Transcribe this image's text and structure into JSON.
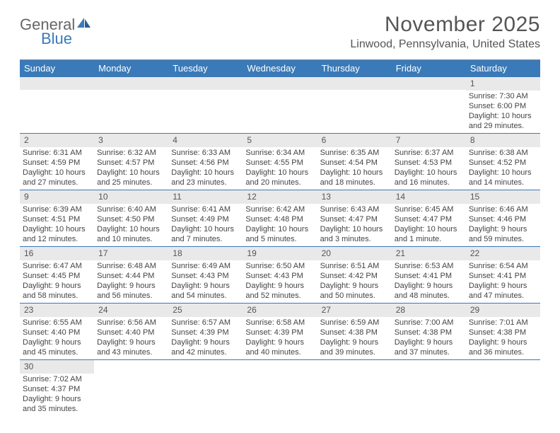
{
  "brand": {
    "word1": "General",
    "word2": "Blue",
    "word1_color": "#666666",
    "word2_color": "#3a7ab8"
  },
  "title": "November 2025",
  "location": "Linwood, Pennsylvania, United States",
  "colors": {
    "header_bg": "#3a7ab8",
    "header_text": "#ffffff",
    "daynum_bg": "#e9e9e9",
    "text": "#444444",
    "row_border": "#3a7ab8"
  },
  "day_headers": [
    "Sunday",
    "Monday",
    "Tuesday",
    "Wednesday",
    "Thursday",
    "Friday",
    "Saturday"
  ],
  "weeks": [
    [
      null,
      null,
      null,
      null,
      null,
      null,
      {
        "n": "1",
        "sunrise": "Sunrise: 7:30 AM",
        "sunset": "Sunset: 6:00 PM",
        "daylight": "Daylight: 10 hours and 29 minutes."
      }
    ],
    [
      {
        "n": "2",
        "sunrise": "Sunrise: 6:31 AM",
        "sunset": "Sunset: 4:59 PM",
        "daylight": "Daylight: 10 hours and 27 minutes."
      },
      {
        "n": "3",
        "sunrise": "Sunrise: 6:32 AM",
        "sunset": "Sunset: 4:57 PM",
        "daylight": "Daylight: 10 hours and 25 minutes."
      },
      {
        "n": "4",
        "sunrise": "Sunrise: 6:33 AM",
        "sunset": "Sunset: 4:56 PM",
        "daylight": "Daylight: 10 hours and 23 minutes."
      },
      {
        "n": "5",
        "sunrise": "Sunrise: 6:34 AM",
        "sunset": "Sunset: 4:55 PM",
        "daylight": "Daylight: 10 hours and 20 minutes."
      },
      {
        "n": "6",
        "sunrise": "Sunrise: 6:35 AM",
        "sunset": "Sunset: 4:54 PM",
        "daylight": "Daylight: 10 hours and 18 minutes."
      },
      {
        "n": "7",
        "sunrise": "Sunrise: 6:37 AM",
        "sunset": "Sunset: 4:53 PM",
        "daylight": "Daylight: 10 hours and 16 minutes."
      },
      {
        "n": "8",
        "sunrise": "Sunrise: 6:38 AM",
        "sunset": "Sunset: 4:52 PM",
        "daylight": "Daylight: 10 hours and 14 minutes."
      }
    ],
    [
      {
        "n": "9",
        "sunrise": "Sunrise: 6:39 AM",
        "sunset": "Sunset: 4:51 PM",
        "daylight": "Daylight: 10 hours and 12 minutes."
      },
      {
        "n": "10",
        "sunrise": "Sunrise: 6:40 AM",
        "sunset": "Sunset: 4:50 PM",
        "daylight": "Daylight: 10 hours and 10 minutes."
      },
      {
        "n": "11",
        "sunrise": "Sunrise: 6:41 AM",
        "sunset": "Sunset: 4:49 PM",
        "daylight": "Daylight: 10 hours and 7 minutes."
      },
      {
        "n": "12",
        "sunrise": "Sunrise: 6:42 AM",
        "sunset": "Sunset: 4:48 PM",
        "daylight": "Daylight: 10 hours and 5 minutes."
      },
      {
        "n": "13",
        "sunrise": "Sunrise: 6:43 AM",
        "sunset": "Sunset: 4:47 PM",
        "daylight": "Daylight: 10 hours and 3 minutes."
      },
      {
        "n": "14",
        "sunrise": "Sunrise: 6:45 AM",
        "sunset": "Sunset: 4:47 PM",
        "daylight": "Daylight: 10 hours and 1 minute."
      },
      {
        "n": "15",
        "sunrise": "Sunrise: 6:46 AM",
        "sunset": "Sunset: 4:46 PM",
        "daylight": "Daylight: 9 hours and 59 minutes."
      }
    ],
    [
      {
        "n": "16",
        "sunrise": "Sunrise: 6:47 AM",
        "sunset": "Sunset: 4:45 PM",
        "daylight": "Daylight: 9 hours and 58 minutes."
      },
      {
        "n": "17",
        "sunrise": "Sunrise: 6:48 AM",
        "sunset": "Sunset: 4:44 PM",
        "daylight": "Daylight: 9 hours and 56 minutes."
      },
      {
        "n": "18",
        "sunrise": "Sunrise: 6:49 AM",
        "sunset": "Sunset: 4:43 PM",
        "daylight": "Daylight: 9 hours and 54 minutes."
      },
      {
        "n": "19",
        "sunrise": "Sunrise: 6:50 AM",
        "sunset": "Sunset: 4:43 PM",
        "daylight": "Daylight: 9 hours and 52 minutes."
      },
      {
        "n": "20",
        "sunrise": "Sunrise: 6:51 AM",
        "sunset": "Sunset: 4:42 PM",
        "daylight": "Daylight: 9 hours and 50 minutes."
      },
      {
        "n": "21",
        "sunrise": "Sunrise: 6:53 AM",
        "sunset": "Sunset: 4:41 PM",
        "daylight": "Daylight: 9 hours and 48 minutes."
      },
      {
        "n": "22",
        "sunrise": "Sunrise: 6:54 AM",
        "sunset": "Sunset: 4:41 PM",
        "daylight": "Daylight: 9 hours and 47 minutes."
      }
    ],
    [
      {
        "n": "23",
        "sunrise": "Sunrise: 6:55 AM",
        "sunset": "Sunset: 4:40 PM",
        "daylight": "Daylight: 9 hours and 45 minutes."
      },
      {
        "n": "24",
        "sunrise": "Sunrise: 6:56 AM",
        "sunset": "Sunset: 4:40 PM",
        "daylight": "Daylight: 9 hours and 43 minutes."
      },
      {
        "n": "25",
        "sunrise": "Sunrise: 6:57 AM",
        "sunset": "Sunset: 4:39 PM",
        "daylight": "Daylight: 9 hours and 42 minutes."
      },
      {
        "n": "26",
        "sunrise": "Sunrise: 6:58 AM",
        "sunset": "Sunset: 4:39 PM",
        "daylight": "Daylight: 9 hours and 40 minutes."
      },
      {
        "n": "27",
        "sunrise": "Sunrise: 6:59 AM",
        "sunset": "Sunset: 4:38 PM",
        "daylight": "Daylight: 9 hours and 39 minutes."
      },
      {
        "n": "28",
        "sunrise": "Sunrise: 7:00 AM",
        "sunset": "Sunset: 4:38 PM",
        "daylight": "Daylight: 9 hours and 37 minutes."
      },
      {
        "n": "29",
        "sunrise": "Sunrise: 7:01 AM",
        "sunset": "Sunset: 4:38 PM",
        "daylight": "Daylight: 9 hours and 36 minutes."
      }
    ],
    [
      {
        "n": "30",
        "sunrise": "Sunrise: 7:02 AM",
        "sunset": "Sunset: 4:37 PM",
        "daylight": "Daylight: 9 hours and 35 minutes."
      },
      null,
      null,
      null,
      null,
      null,
      null
    ]
  ]
}
